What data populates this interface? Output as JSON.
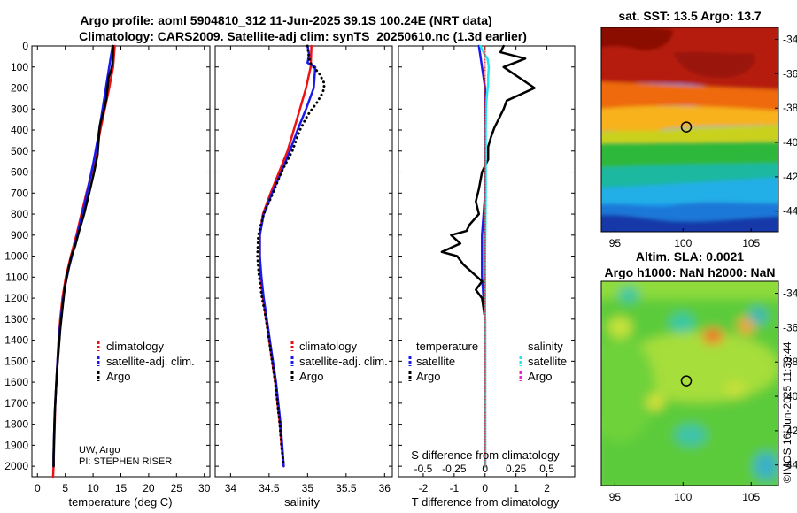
{
  "title_line1": "Argo profile: aoml 5904810_312 11-Jun-2025 39.1S 100.24E (NRT data)",
  "title_line2": "Climatology: CARS2009. Satellite-adj clim: synTS_20250610.nc (1.3d earlier)",
  "credit": {
    "line1": "UW, Argo",
    "line2": "PI: STEPHEN RISER"
  },
  "timestamp": "©IMOS 16-Jun-2025 11:39:44",
  "colors": {
    "climatology": "#ee1111",
    "satellite": "#1a1aee",
    "argo": "#000000",
    "cyan": "#22e6ee",
    "magenta": "#ee22cc"
  },
  "chart_data": [
    {
      "type": "line",
      "id": "temperature",
      "xlabel": "temperature (deg C)",
      "xlim": [
        -1,
        31
      ],
      "xticks": [
        0,
        5,
        10,
        15,
        20,
        25,
        30
      ],
      "ylim": [
        0,
        2050
      ],
      "yticks": [
        0,
        100,
        200,
        300,
        400,
        500,
        600,
        700,
        800,
        900,
        1000,
        1100,
        1200,
        1300,
        1400,
        1500,
        1600,
        1700,
        1800,
        1900,
        2000
      ],
      "legend": [
        "climatology",
        "satellite-adj. clim.",
        "Argo"
      ],
      "series": [
        {
          "name": "climatology",
          "style": "solid",
          "color_key": "climatology",
          "points": [
            [
              13.9,
              0
            ],
            [
              13.6,
              100
            ],
            [
              12.9,
              200
            ],
            [
              12.1,
              300
            ],
            [
              11.3,
              400
            ],
            [
              10.6,
              500
            ],
            [
              9.8,
              600
            ],
            [
              8.8,
              700
            ],
            [
              7.9,
              800
            ],
            [
              7.0,
              900
            ],
            [
              6.0,
              1000
            ],
            [
              5.1,
              1100
            ],
            [
              4.5,
              1200
            ],
            [
              4.1,
              1300
            ],
            [
              3.8,
              1400
            ],
            [
              3.6,
              1500
            ],
            [
              3.4,
              1600
            ],
            [
              3.2,
              1700
            ],
            [
              3.1,
              1800
            ],
            [
              3.0,
              1900
            ],
            [
              2.9,
              2000
            ],
            [
              2.8,
              2050
            ]
          ]
        },
        {
          "name": "satellite-adj. clim.",
          "style": "solid",
          "color_key": "satellite",
          "points": [
            [
              13.5,
              0
            ],
            [
              13.2,
              50
            ],
            [
              12.6,
              150
            ],
            [
              12.0,
              250
            ],
            [
              11.4,
              350
            ],
            [
              10.8,
              450
            ],
            [
              10.1,
              550
            ],
            [
              9.3,
              650
            ],
            [
              8.5,
              750
            ],
            [
              7.6,
              850
            ],
            [
              6.7,
              950
            ],
            [
              5.7,
              1050
            ],
            [
              4.9,
              1150
            ],
            [
              4.4,
              1250
            ],
            [
              4.0,
              1350
            ],
            [
              3.7,
              1450
            ],
            [
              3.5,
              1550
            ],
            [
              3.3,
              1650
            ],
            [
              3.1,
              1750
            ],
            [
              3.0,
              1850
            ],
            [
              2.9,
              1950
            ],
            [
              2.9,
              2000
            ]
          ]
        },
        {
          "name": "Argo",
          "style": "solid",
          "color_key": "argo",
          "points": [
            [
              13.6,
              0
            ],
            [
              13.5,
              80
            ],
            [
              13.3,
              110
            ],
            [
              12.8,
              150
            ],
            [
              12.6,
              200
            ],
            [
              12.4,
              250
            ],
            [
              12.1,
              290
            ],
            [
              11.6,
              340
            ],
            [
              11.2,
              380
            ],
            [
              11.0,
              450
            ],
            [
              10.8,
              520
            ],
            [
              10.2,
              600
            ],
            [
              9.3,
              700
            ],
            [
              8.4,
              800
            ],
            [
              7.5,
              880
            ],
            [
              6.8,
              950
            ],
            [
              6.1,
              1000
            ],
            [
              5.4,
              1080
            ],
            [
              4.9,
              1150
            ],
            [
              4.5,
              1250
            ],
            [
              4.1,
              1350
            ],
            [
              3.8,
              1450
            ],
            [
              3.5,
              1550
            ],
            [
              3.3,
              1650
            ],
            [
              3.1,
              1750
            ],
            [
              3.0,
              1850
            ],
            [
              2.9,
              1950
            ],
            [
              2.9,
              2000
            ]
          ]
        }
      ]
    },
    {
      "type": "line",
      "id": "salinity",
      "xlabel": "salinity",
      "xlim": [
        33.8,
        36.1
      ],
      "xticks": [
        34,
        34.5,
        35,
        35.5,
        36
      ],
      "ylim": [
        0,
        2050
      ],
      "legend": [
        "climatology",
        "satellite-adj. clim.",
        "Argo"
      ],
      "series": [
        {
          "name": "climatology",
          "style": "solid",
          "color_key": "climatology",
          "points": [
            [
              35.05,
              0
            ],
            [
              35.04,
              100
            ],
            [
              34.98,
              200
            ],
            [
              34.9,
              300
            ],
            [
              34.82,
              400
            ],
            [
              34.74,
              500
            ],
            [
              34.63,
              600
            ],
            [
              34.52,
              700
            ],
            [
              34.42,
              800
            ],
            [
              34.38,
              900
            ],
            [
              34.38,
              1000
            ],
            [
              34.39,
              1100
            ],
            [
              34.42,
              1200
            ],
            [
              34.46,
              1300
            ],
            [
              34.5,
              1400
            ],
            [
              34.54,
              1500
            ],
            [
              34.58,
              1600
            ],
            [
              34.61,
              1700
            ],
            [
              34.64,
              1800
            ],
            [
              34.66,
              1900
            ],
            [
              34.69,
              2000
            ]
          ]
        },
        {
          "name": "satellite-adj. clim.",
          "style": "solid",
          "color_key": "satellite",
          "points": [
            [
              35.0,
              0
            ],
            [
              35.02,
              40
            ],
            [
              35.0,
              80
            ],
            [
              35.1,
              100
            ],
            [
              35.08,
              200
            ],
            [
              34.98,
              300
            ],
            [
              34.87,
              400
            ],
            [
              34.77,
              500
            ],
            [
              34.66,
              600
            ],
            [
              34.54,
              700
            ],
            [
              34.43,
              800
            ],
            [
              34.38,
              900
            ],
            [
              34.38,
              1000
            ],
            [
              34.4,
              1100
            ],
            [
              34.43,
              1200
            ],
            [
              34.47,
              1300
            ],
            [
              34.51,
              1400
            ],
            [
              34.55,
              1500
            ],
            [
              34.59,
              1600
            ],
            [
              34.62,
              1700
            ],
            [
              34.65,
              1800
            ],
            [
              34.67,
              1900
            ],
            [
              34.69,
              2000
            ]
          ]
        },
        {
          "name": "Argo",
          "style": "dotted",
          "color_key": "argo",
          "points": [
            [
              35.0,
              0
            ],
            [
              35.02,
              60
            ],
            [
              35.05,
              90
            ],
            [
              35.15,
              130
            ],
            [
              35.22,
              180
            ],
            [
              35.2,
              220
            ],
            [
              35.12,
              270
            ],
            [
              35.0,
              330
            ],
            [
              34.9,
              400
            ],
            [
              34.8,
              500
            ],
            [
              34.66,
              600
            ],
            [
              34.55,
              700
            ],
            [
              34.43,
              800
            ],
            [
              34.36,
              900
            ],
            [
              34.35,
              1000
            ],
            [
              34.37,
              1100
            ],
            [
              34.41,
              1200
            ],
            [
              34.46,
              1300
            ],
            [
              34.5,
              1400
            ],
            [
              34.54,
              1500
            ],
            [
              34.58,
              1600
            ],
            [
              34.61,
              1700
            ],
            [
              34.64,
              1800
            ],
            [
              34.66,
              1900
            ],
            [
              34.69,
              2000
            ]
          ]
        }
      ]
    },
    {
      "type": "line",
      "id": "difference",
      "xlabel": "T difference from climatology",
      "xlabel_top": "S difference from climatology",
      "xlim": [
        -2.8,
        2.9
      ],
      "xticks": [
        -2,
        -1,
        0,
        1,
        2
      ],
      "xtick_labels_s": [
        "-0.5",
        "-0.25",
        "0",
        "0.25",
        "0.5"
      ],
      "ylim": [
        0,
        2050
      ],
      "legend_titles": [
        "temperature",
        "salinity"
      ],
      "legend": [
        "satellite",
        "Argo",
        "satellite",
        "Argo"
      ],
      "series": [
        {
          "name": "temperature satellite",
          "style": "solid",
          "color_key": "satellite",
          "points": [
            [
              -0.2,
              0
            ],
            [
              -0.1,
              100
            ],
            [
              0.0,
              200
            ],
            [
              0.0,
              400
            ],
            [
              0.0,
              700
            ],
            [
              -0.1,
              900
            ],
            [
              -0.1,
              1100
            ],
            [
              0.0,
              1300
            ],
            [
              0.0,
              1600
            ],
            [
              0.0,
              2000
            ]
          ]
        },
        {
          "name": "temperature Argo",
          "style": "solid",
          "color_key": "argo",
          "points": [
            [
              0.6,
              0
            ],
            [
              0.5,
              30
            ],
            [
              1.3,
              60
            ],
            [
              0.6,
              100
            ],
            [
              1.6,
              200
            ],
            [
              0.7,
              260
            ],
            [
              0.6,
              300
            ],
            [
              0.5,
              330
            ],
            [
              0.4,
              360
            ],
            [
              0.3,
              390
            ],
            [
              0.2,
              430
            ],
            [
              0.1,
              480
            ],
            [
              0.1,
              540
            ],
            [
              -0.1,
              600
            ],
            [
              -0.2,
              680
            ],
            [
              -0.3,
              740
            ],
            [
              -0.2,
              800
            ],
            [
              -0.5,
              850
            ],
            [
              -0.6,
              880
            ],
            [
              -1.1,
              900
            ],
            [
              -0.8,
              940
            ],
            [
              -1.4,
              980
            ],
            [
              -0.9,
              1000
            ],
            [
              -0.7,
              1040
            ],
            [
              -0.4,
              1080
            ],
            [
              -0.1,
              1120
            ],
            [
              -0.3,
              1160
            ],
            [
              -0.1,
              1200
            ],
            [
              0.0,
              1300
            ],
            [
              0.0,
              1500
            ],
            [
              0.0,
              2000
            ]
          ]
        },
        {
          "name": "salinity satellite",
          "style": "solid",
          "color_key": "cyan",
          "points": [
            [
              -0.15,
              0
            ],
            [
              -0.02,
              40
            ],
            [
              0.08,
              60
            ],
            [
              0.12,
              100
            ],
            [
              0.1,
              150
            ],
            [
              0.1,
              180
            ],
            [
              0.05,
              250
            ],
            [
              0.03,
              300
            ],
            [
              0.02,
              400
            ],
            [
              0.02,
              700
            ],
            [
              0.0,
              1000
            ],
            [
              0.0,
              1400
            ],
            [
              0.0,
              2000
            ]
          ]
        },
        {
          "name": "climatology reference",
          "style": "dotted",
          "color_key": "climatology",
          "points": [
            [
              0.0,
              0
            ],
            [
              0.0,
              2000
            ]
          ]
        }
      ]
    },
    {
      "type": "heatmap",
      "id": "sst_map",
      "title": "sat. SST: 13.5 Argo: 13.7",
      "xlim": [
        94,
        107
      ],
      "ylim": [
        -45.2,
        -33.3
      ],
      "xticks": [
        95,
        100,
        105
      ],
      "yticks": [
        -34,
        -36,
        -38,
        -40,
        -42,
        -44
      ],
      "marker": [
        100.24,
        -39.1
      ]
    },
    {
      "type": "heatmap",
      "id": "sla_map",
      "title": "Altim. SLA: 0.0021",
      "subtitle": "Argo h1000: NaN h2000: NaN",
      "xlim": [
        94,
        107
      ],
      "ylim": [
        -45.2,
        -33.3
      ],
      "xticks": [
        95,
        100,
        105
      ],
      "yticks": [
        -34,
        -36,
        -38,
        -40,
        -42,
        -44
      ],
      "marker": [
        100.24,
        -39.1
      ]
    }
  ]
}
